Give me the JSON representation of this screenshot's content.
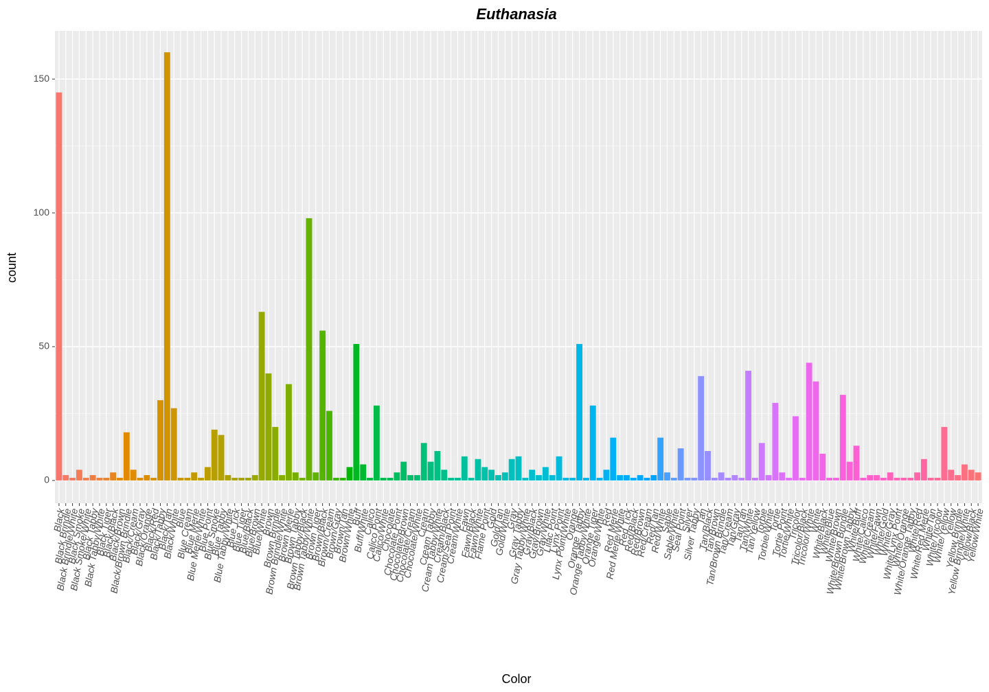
{
  "chart_data": {
    "type": "bar",
    "title": "Euthanasia",
    "x_label": "Color",
    "y_label": "count",
    "categories": [
      "Black",
      "Black Brindle",
      "Black Brindle/White",
      "Black Smoke",
      "Black Smoke/White",
      "Black Tabby",
      "Black Tabby/White",
      "Black Tiger",
      "Black/Black",
      "Black/Brown",
      "Black/Brown Brindle",
      "Black/Cream",
      "Black/Gray",
      "Black/Orange",
      "Black/Red",
      "Black/Tabby",
      "Black/Tan",
      "Black/White",
      "Blue",
      "Blue Cream",
      "Blue Merle",
      "Blue Merle/White",
      "Blue Point",
      "Blue Smoke",
      "Blue Tabby",
      "Blue Tabby/White",
      "Blue Tick",
      "Blue Tiger",
      "Blue/Black",
      "Blue/Brown",
      "Blue/White",
      "Brown",
      "Brown Brindle",
      "Brown Brindle/White",
      "Brown Merle",
      "Brown Tabby",
      "Brown Tabby/Black",
      "Brown Tabby/White",
      "Brown Tiger",
      "Brown/Black",
      "Brown/Cream",
      "Brown/Gray",
      "Brown/Tan",
      "Brown/White",
      "Buff",
      "Buff/White",
      "Calico",
      "Calico Point",
      "Calico/White",
      "Chocolate",
      "Chocolate Point",
      "Chocolate/Brown",
      "Chocolate/Cream",
      "Chocolate/White",
      "Cream",
      "Cream Tabby",
      "Cream Tabby/White",
      "Cream/Black",
      "Cream/Seal Point",
      "Cream/White",
      "Fawn",
      "Fawn/Black",
      "Fawn/White",
      "Flame Point",
      "Gold",
      "Gold/Tan",
      "Gold/White",
      "Gray",
      "Gray Tabby",
      "Gray Tabby/White",
      "Gray/Black",
      "Gray/Brown",
      "Gray/White",
      "Lilac Point",
      "Lynx Point",
      "Lynx Point/White",
      "Orange",
      "Orange Tabby",
      "Orange Tabby/White",
      "Orange Tiger",
      "Orange/White",
      "Red",
      "Red Merle",
      "Red Merle/White",
      "Red Tick",
      "Red/Black",
      "Red/Brown",
      "Red/Cream",
      "Red/Tan",
      "Red/White",
      "Sable",
      "Sable/White",
      "Seal Point",
      "Silver",
      "Silver Tabby",
      "Tan",
      "Tan/Black",
      "Tan/Brown",
      "Tan/Brown Brindle",
      "Tan/Cream",
      "Tan/Gray",
      "Tan/Tan",
      "Tan/White",
      "Tan/Yellow",
      "Torbie",
      "Torbie/White",
      "Tortie",
      "Tortie Point",
      "Tortie/White",
      "Tricolor",
      "Tricolor/Black",
      "Tricolor/White",
      "White",
      "White/Black",
      "White/Blue",
      "White/Brown",
      "White/Brown Brindle",
      "White/Brown Tabby",
      "White/Buff",
      "White/Calico",
      "White/Cream",
      "White/Fawn",
      "White/Gold",
      "White/Gray",
      "White/Lynx Point",
      "White/Orange",
      "White/Orange Tabby",
      "White/Red",
      "White/Red Merle",
      "White/Tan",
      "White/Tricolor",
      "White/Yellow",
      "Yellow",
      "Yellow Brindle",
      "Yellow Brindle/White",
      "Yellow/Black",
      "Yellow/White"
    ],
    "values": [
      145,
      2,
      1,
      4,
      1,
      2,
      1,
      1,
      3,
      1,
      18,
      4,
      1,
      2,
      1,
      30,
      160,
      27,
      1,
      1,
      3,
      1,
      5,
      19,
      17,
      2,
      1,
      1,
      1,
      2,
      63,
      40,
      20,
      2,
      36,
      3,
      1,
      98,
      3,
      56,
      26,
      1,
      1,
      5,
      51,
      6,
      1,
      28,
      1,
      1,
      3,
      7,
      2,
      2,
      14,
      7,
      11,
      4,
      1,
      1,
      9,
      1,
      8,
      5,
      4,
      2,
      3,
      8,
      9,
      1,
      4,
      2,
      5,
      2,
      9,
      1,
      1,
      51,
      1,
      28,
      1,
      4,
      16,
      2,
      2,
      1,
      2,
      1,
      2,
      16,
      3,
      1,
      12,
      1,
      1,
      39,
      11,
      1,
      3,
      1,
      2,
      1,
      41,
      1,
      14,
      2,
      29,
      3,
      1,
      24,
      1,
      44,
      37,
      10,
      1,
      1,
      32,
      7,
      13,
      1,
      2,
      2,
      1,
      3,
      1,
      1,
      1,
      3,
      8,
      1,
      1,
      20,
      4,
      2,
      6,
      4,
      3
    ],
    "color_scale": "hue",
    "ylim": [
      -8.5,
      168
    ],
    "yticks": [
      0,
      50,
      100,
      150
    ],
    "grid": true
  }
}
